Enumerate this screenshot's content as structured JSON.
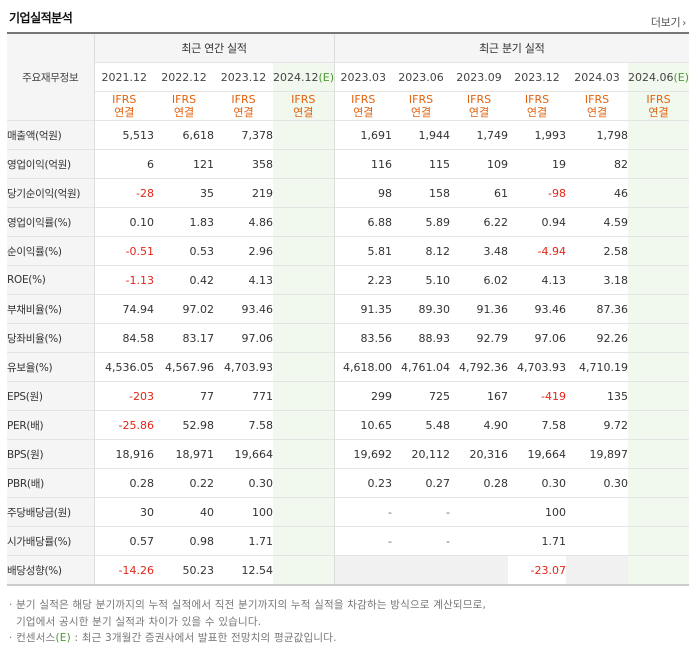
{
  "title": "기업실적분석",
  "more_label": "더보기",
  "header": {
    "row_label": "주요재무정보",
    "annual_group": "최근 연간 실적",
    "quarter_group": "최근 분기 실적",
    "annual_periods": [
      {
        "label": "2021.12",
        "estimate": false
      },
      {
        "label": "2022.12",
        "estimate": false
      },
      {
        "label": "2023.12",
        "estimate": false
      },
      {
        "label": "2024.12",
        "estimate": true,
        "suffix": "(E)"
      }
    ],
    "quarter_periods": [
      {
        "label": "2023.03",
        "estimate": false
      },
      {
        "label": "2023.06",
        "estimate": false
      },
      {
        "label": "2023.09",
        "estimate": false
      },
      {
        "label": "2023.12",
        "estimate": false
      },
      {
        "label": "2024.03",
        "estimate": false
      },
      {
        "label": "2024.06",
        "estimate": true,
        "suffix": "(E)"
      }
    ],
    "basis_line1": "IFRS",
    "basis_line2": "연결"
  },
  "rows": [
    {
      "label": "매출액(억원)",
      "values": [
        "5,513",
        "6,618",
        "7,378",
        "",
        "1,691",
        "1,944",
        "1,749",
        "1,993",
        "1,798",
        ""
      ]
    },
    {
      "label": "영업이익(억원)",
      "values": [
        "6",
        "121",
        "358",
        "",
        "116",
        "115",
        "109",
        "19",
        "82",
        ""
      ]
    },
    {
      "label": "당기순이익(억원)",
      "values": [
        "-28",
        "35",
        "219",
        "",
        "98",
        "158",
        "61",
        "-98",
        "46",
        ""
      ]
    },
    {
      "label": "영업이익률(%)",
      "values": [
        "0.10",
        "1.83",
        "4.86",
        "",
        "6.88",
        "5.89",
        "6.22",
        "0.94",
        "4.59",
        ""
      ]
    },
    {
      "label": "순이익률(%)",
      "values": [
        "-0.51",
        "0.53",
        "2.96",
        "",
        "5.81",
        "8.12",
        "3.48",
        "-4.94",
        "2.58",
        ""
      ]
    },
    {
      "label": "ROE(%)",
      "values": [
        "-1.13",
        "0.42",
        "4.13",
        "",
        "2.23",
        "5.10",
        "6.02",
        "4.13",
        "3.18",
        ""
      ]
    },
    {
      "label": "부채비율(%)",
      "values": [
        "74.94",
        "97.02",
        "93.46",
        "",
        "91.35",
        "89.30",
        "91.36",
        "93.46",
        "87.36",
        ""
      ]
    },
    {
      "label": "당좌비율(%)",
      "values": [
        "84.58",
        "83.17",
        "97.06",
        "",
        "83.56",
        "88.93",
        "92.79",
        "97.06",
        "92.26",
        ""
      ]
    },
    {
      "label": "유보율(%)",
      "values": [
        "4,536.05",
        "4,567.96",
        "4,703.93",
        "",
        "4,618.00",
        "4,761.04",
        "4,792.36",
        "4,703.93",
        "4,710.19",
        ""
      ]
    },
    {
      "label": "EPS(원)",
      "values": [
        "-203",
        "77",
        "771",
        "",
        "299",
        "725",
        "167",
        "-419",
        "135",
        ""
      ]
    },
    {
      "label": "PER(배)",
      "values": [
        "-25.86",
        "52.98",
        "7.58",
        "",
        "10.65",
        "5.48",
        "4.90",
        "7.58",
        "9.72",
        ""
      ]
    },
    {
      "label": "BPS(원)",
      "values": [
        "18,916",
        "18,971",
        "19,664",
        "",
        "19,692",
        "20,112",
        "20,316",
        "19,664",
        "19,897",
        ""
      ]
    },
    {
      "label": "PBR(배)",
      "values": [
        "0.28",
        "0.22",
        "0.30",
        "",
        "0.23",
        "0.27",
        "0.28",
        "0.30",
        "0.30",
        ""
      ]
    },
    {
      "label": "주당배당금(원)",
      "values": [
        "30",
        "40",
        "100",
        "",
        "-",
        "-",
        "",
        "100",
        "",
        ""
      ]
    },
    {
      "label": "시가배당률(%)",
      "values": [
        "0.57",
        "0.98",
        "1.71",
        "",
        "-",
        "-",
        "",
        "1.71",
        "",
        ""
      ]
    },
    {
      "label": "배당성향(%)",
      "values": [
        "-14.26",
        "50.23",
        "12.54",
        "",
        "",
        "",
        "",
        "-23.07",
        "",
        ""
      ]
    }
  ],
  "notes": [
    "· 분기 실적은 해당 분기까지의 누적 실적에서 직전 분기까지의 누적 실적을 차감하는 방식으로 계산되므로,",
    "  기업에서 공시한 분기 실적과 차이가 있을 수 있습니다.",
    "· 컨센서스(E) : 최근 3개월간 증권사에서 발표한 전망치의 평균값입니다."
  ],
  "colors": {
    "negative": "#e2261a",
    "ifrs": "#e2620e",
    "estimate_bg": "#f1f8ee",
    "estimate_tag": "#4a9a2f"
  }
}
